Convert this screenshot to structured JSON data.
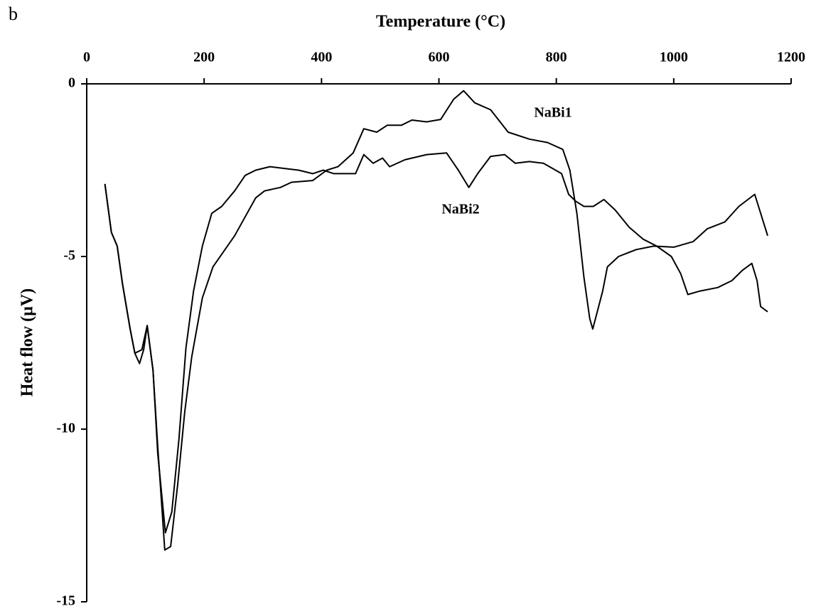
{
  "chart_data": {
    "type": "line",
    "panel_label": "b",
    "title": "Temperature (°C)",
    "y_label": "Heat flow (µV)",
    "xlim": [
      0,
      1200
    ],
    "xticks": [
      0,
      200,
      400,
      600,
      800,
      1000,
      1200
    ],
    "ylim": [
      -15,
      0
    ],
    "yticks": [
      -15,
      -10,
      -5,
      0
    ],
    "grid": false,
    "series": [
      {
        "name": "NaBi1",
        "color": "#000000",
        "x": [
          31,
          42,
          52,
          61,
          74,
          82,
          94,
          103,
          113,
          121,
          133,
          143,
          155,
          167,
          179,
          197,
          215,
          252,
          288,
          303,
          330,
          349,
          385,
          409,
          428,
          454,
          472,
          494,
          512,
          536,
          554,
          579,
          603,
          625,
          642,
          661,
          688,
          718,
          754,
          785,
          811,
          823,
          835,
          847,
          857,
          862,
          879,
          887,
          906,
          936,
          966,
          1000,
          1033,
          1057,
          1087,
          1111,
          1138,
          1160
        ],
        "values": [
          -2.9,
          -4.3,
          -4.7,
          -5.8,
          -7.1,
          -7.8,
          -7.7,
          -7.0,
          -8.3,
          -10.5,
          -13.5,
          -13.4,
          -11.6,
          -9.5,
          -7.9,
          -6.2,
          -5.3,
          -4.4,
          -3.3,
          -3.1,
          -3.0,
          -2.85,
          -2.8,
          -2.5,
          -2.4,
          -2.0,
          -1.3,
          -1.4,
          -1.2,
          -1.2,
          -1.05,
          -1.1,
          -1.03,
          -0.45,
          -0.2,
          -0.55,
          -0.75,
          -1.4,
          -1.6,
          -1.7,
          -1.9,
          -2.5,
          -3.75,
          -5.6,
          -6.8,
          -7.1,
          -6.0,
          -5.3,
          -5.0,
          -4.8,
          -4.7,
          -4.73,
          -4.57,
          -4.2,
          -4.0,
          -3.55,
          -3.2,
          -4.4
        ]
      },
      {
        "name": "NaBi2",
        "color": "#000000",
        "x": [
          31,
          42,
          52,
          61,
          74,
          82,
          90,
          97,
          103,
          113,
          121,
          134,
          145,
          157,
          169,
          182,
          197,
          213,
          230,
          252,
          270,
          288,
          312,
          337,
          361,
          385,
          403,
          421,
          458,
          472,
          488,
          504,
          516,
          542,
          579,
          613,
          633,
          651,
          666,
          688,
          712,
          730,
          754,
          778,
          809,
          821,
          833,
          847,
          863,
          881,
          900,
          924,
          948,
          971,
          996,
          1012,
          1024,
          1045,
          1075,
          1099,
          1117,
          1133,
          1142,
          1148,
          1160
        ],
        "values": [
          -2.9,
          -4.3,
          -4.7,
          -5.8,
          -7.1,
          -7.8,
          -8.1,
          -7.7,
          -7.0,
          -8.3,
          -10.7,
          -13.0,
          -12.4,
          -10.3,
          -7.65,
          -6.0,
          -4.7,
          -3.75,
          -3.55,
          -3.1,
          -2.65,
          -2.5,
          -2.4,
          -2.45,
          -2.5,
          -2.6,
          -2.5,
          -2.6,
          -2.6,
          -2.05,
          -2.3,
          -2.15,
          -2.4,
          -2.2,
          -2.05,
          -2.0,
          -2.5,
          -3.0,
          -2.6,
          -2.1,
          -2.05,
          -2.3,
          -2.25,
          -2.3,
          -2.6,
          -3.2,
          -3.4,
          -3.55,
          -3.55,
          -3.35,
          -3.65,
          -4.15,
          -4.5,
          -4.7,
          -5.0,
          -5.5,
          -6.1,
          -6.0,
          -5.9,
          -5.7,
          -5.4,
          -5.2,
          -5.7,
          -6.45,
          -6.6
        ]
      }
    ]
  }
}
